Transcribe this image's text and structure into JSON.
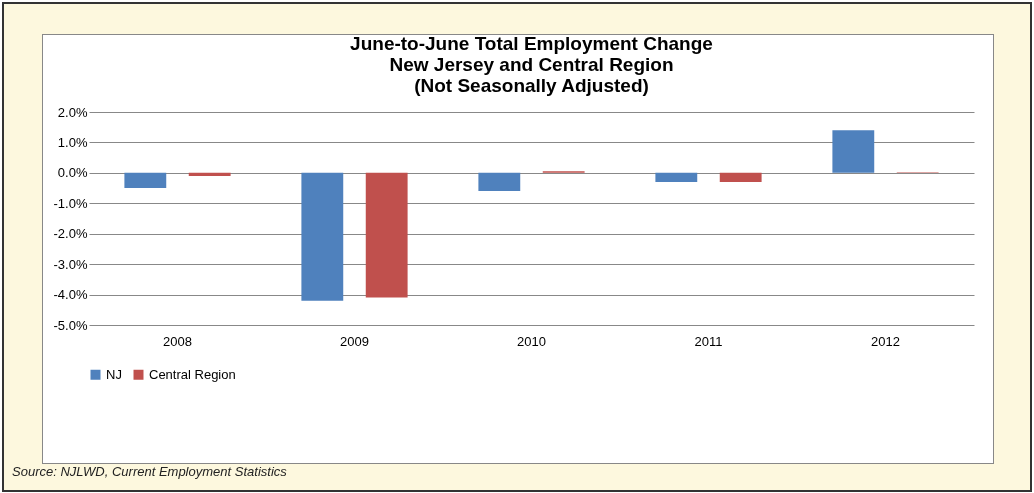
{
  "chart_data": {
    "type": "bar",
    "title": "June-to-June Total Employment Change\nNew Jersey and Central Region\n(Not Seasonally Adjusted)",
    "categories": [
      "2008",
      "2009",
      "2010",
      "2011",
      "2012"
    ],
    "series": [
      {
        "name": "NJ",
        "color": "#4f81bd",
        "values": [
          -0.5,
          -4.2,
          -0.6,
          -0.3,
          1.4
        ]
      },
      {
        "name": "Central Region",
        "color": "#c0504d",
        "values": [
          -0.1,
          -4.1,
          0.05,
          -0.3,
          0.02
        ]
      }
    ],
    "ylim": [
      -5,
      2
    ],
    "yticks": [
      {
        "value": -5,
        "label": "-5.0%"
      },
      {
        "value": -4,
        "label": "-4.0%"
      },
      {
        "value": -3,
        "label": "-3.0%"
      },
      {
        "value": -2,
        "label": "-2.0%"
      },
      {
        "value": -1,
        "label": "-1.0%"
      },
      {
        "value": 0,
        "label": "0.0%"
      },
      {
        "value": 1,
        "label": "1.0%"
      },
      {
        "value": 2,
        "label": "2.0%"
      }
    ],
    "grid": true,
    "legend": "bottom",
    "annotations": [
      "Source: NJLWD, Current Employment Statistics"
    ]
  }
}
